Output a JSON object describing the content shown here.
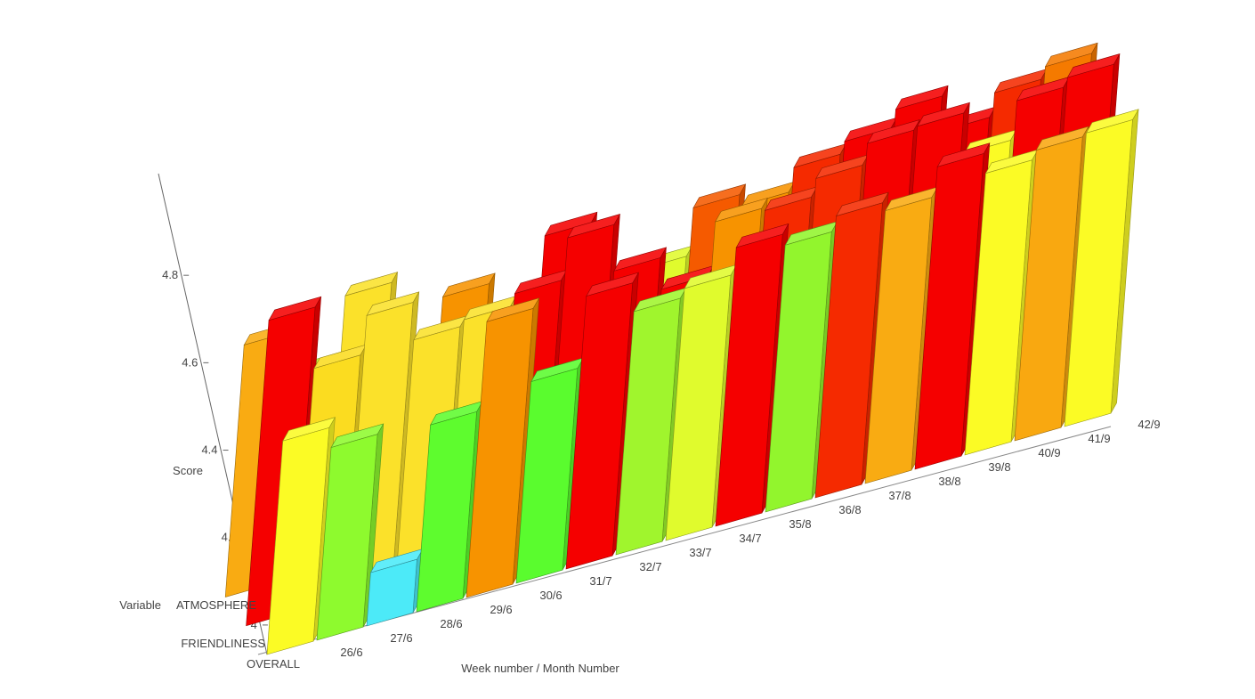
{
  "chart_data": {
    "type": "bar",
    "subtype": "3d-grouped-bar",
    "title": "",
    "xlabel": "Week number / Month Number",
    "ylabel": "Score",
    "zlabel": "Variable",
    "zlabel_value": "ATMOSPHERE",
    "y_ticks": [
      "4",
      "4.2",
      "4.4",
      "4.6",
      "4.8"
    ],
    "ylim": [
      3.9,
      5.0
    ],
    "categories": [
      "26/6",
      "27/6",
      "28/6",
      "29/6",
      "30/6",
      "31/7",
      "32/7",
      "33/7",
      "34/7",
      "35/8",
      "36/8",
      "37/8",
      "38/8",
      "39/8",
      "40/9",
      "41/9",
      "42/9"
    ],
    "series": [
      {
        "name": "OVERALL",
        "values": [
          4.62,
          4.55,
          4.08,
          4.53,
          4.83,
          4.58,
          4.82,
          4.72,
          4.75,
          4.84,
          4.8,
          4.85,
          4.82,
          4.92,
          4.85,
          4.88,
          4.89
        ],
        "colors": [
          "#fbfb25",
          "#8efa2e",
          "#4ceaf8",
          "#5efc2e",
          "#f79300",
          "#5afc2e",
          "#f50000",
          "#a0f52d",
          "#e0fb2d",
          "#f50000",
          "#92f52d",
          "#f52a00",
          "#f9ab12",
          "#f50000",
          "#fbfb25",
          "#f9a810",
          "#fbfb25"
        ]
      },
      {
        "name": "FRIENDLINESS",
        "values": [
          4.93,
          4.72,
          4.85,
          4.72,
          4.74,
          4.78,
          4.92,
          4.76,
          4.65,
          4.83,
          4.82,
          4.88,
          4.95,
          4.96,
          4.82,
          4.95,
          4.98
        ],
        "colors": [
          "#f50000",
          "#fbdc20",
          "#fbe12a",
          "#fbe12a",
          "#fbe12a",
          "#f50000",
          "#f50000",
          "#f50000",
          "#f50000",
          "#f79300",
          "#f52a00",
          "#f52a00",
          "#f50000",
          "#f50000",
          "#fbfb25",
          "#f50000",
          "#f50000"
        ]
      },
      {
        "name": "ATMOSPHERE",
        "values": [
          4.75,
          4.6,
          4.82,
          4.45,
          4.72,
          4.53,
          4.83,
          4.58,
          4.62,
          4.78,
          4.74,
          4.82,
          4.86,
          4.92,
          4.8,
          4.88,
          4.92
        ],
        "colors": [
          "#f9ab12",
          "#b6f52d",
          "#fbe12a",
          "#8efa2e",
          "#f79300",
          "#f9ab12",
          "#f50000",
          "#f50000",
          "#e0fb2d",
          "#f55a00",
          "#f79300",
          "#f52a00",
          "#f50000",
          "#f50000",
          "#f50000",
          "#f52a00",
          "#f57a00"
        ]
      }
    ],
    "grid": false,
    "legend": "none"
  }
}
